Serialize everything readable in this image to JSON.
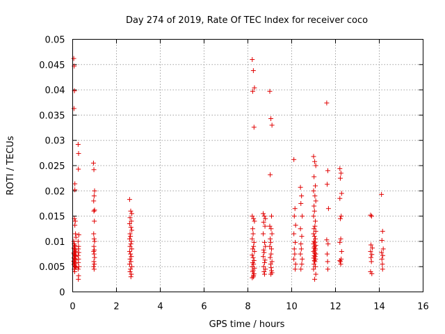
{
  "chart_data": {
    "type": "scatter",
    "title": "Day 274 of 2019, Rate Of TEC Index for receiver coco",
    "xlabel": "GPS time / hours",
    "ylabel": "ROTI / TECUs",
    "xlim": [
      0,
      16
    ],
    "ylim": [
      0,
      0.05
    ],
    "x_ticks": [
      0,
      2,
      4,
      6,
      8,
      10,
      12,
      14,
      16
    ],
    "y_ticks": [
      0,
      0.005,
      0.01,
      0.015,
      0.02,
      0.025,
      0.03,
      0.035,
      0.04,
      0.045,
      0.05
    ],
    "x_tick_labels": [
      "0",
      "2",
      "4",
      "6",
      "8",
      "10",
      "12",
      "14",
      "16"
    ],
    "y_tick_labels": [
      "0",
      "0.005",
      "0.01",
      "0.015",
      "0.02",
      "0.025",
      "0.03",
      "0.035",
      "0.04",
      "0.045",
      "0.05"
    ],
    "grid": true,
    "marker": "+",
    "color": "#e00000",
    "series": [
      {
        "name": "ROTI",
        "x": [
          0.05,
          0.07,
          0.08,
          0.06,
          0.1,
          0.1,
          0.08,
          0.12,
          0.1,
          0.13,
          0.15,
          0.05,
          0.07,
          0.09,
          0.11,
          0.06,
          0.08,
          0.1,
          0.12,
          0.14,
          0.05,
          0.07,
          0.09,
          0.11,
          0.13,
          0.06,
          0.08,
          0.1,
          0.12,
          0.05,
          0.07,
          0.09,
          0.11,
          0.06,
          0.08,
          0.1,
          0.12,
          0.15,
          0.07,
          0.09,
          0.25,
          0.27,
          0.26,
          0.28,
          0.25,
          0.27,
          0.26,
          0.28,
          0.25,
          0.27,
          0.26,
          0.28,
          0.25,
          0.27,
          0.26,
          0.95,
          0.97,
          1.0,
          0.98,
          0.96,
          1.0,
          0.97,
          0.99,
          0.96,
          0.98,
          1.0,
          0.97,
          0.99,
          0.96,
          0.98,
          1.0,
          0.97,
          0.99,
          0.96,
          0.98,
          2.6,
          2.65,
          2.7,
          2.62,
          2.68,
          2.6,
          2.66,
          2.7,
          2.62,
          2.64,
          2.6,
          2.68,
          2.66,
          2.62,
          2.7,
          2.6,
          2.64,
          2.68,
          2.62,
          2.66,
          2.6,
          2.7,
          2.64,
          2.62,
          2.68,
          2.66,
          8.2,
          8.25,
          8.3,
          8.22,
          8.28,
          8.2,
          8.26,
          8.3,
          8.22,
          8.24,
          8.2,
          8.28,
          8.26,
          8.22,
          8.3,
          8.2,
          8.24,
          8.28,
          8.22,
          8.26,
          8.2,
          8.3,
          8.24,
          8.22,
          8.28,
          8.26,
          8.25,
          8.2,
          8.7,
          8.75,
          8.8,
          8.72,
          8.78,
          8.7,
          8.76,
          8.8,
          8.72,
          8.74,
          8.7,
          8.78,
          8.76,
          8.72,
          8.8,
          8.74,
          8.76,
          9.0,
          9.05,
          9.1,
          9.02,
          9.08,
          9.0,
          9.06,
          9.1,
          9.02,
          9.04,
          9.0,
          9.08,
          9.06,
          9.02,
          9.1,
          9.04,
          9.06,
          9.08,
          9.1,
          9.05,
          10.1,
          10.15,
          10.12,
          10.18,
          10.1,
          10.16,
          10.12,
          10.14,
          10.1,
          10.18,
          10.16,
          10.4,
          10.45,
          10.42,
          10.48,
          10.4,
          10.46,
          10.42,
          10.44,
          10.4,
          10.48,
          10.46,
          10.42,
          11.0,
          11.05,
          11.1,
          11.02,
          11.08,
          11.0,
          11.06,
          11.1,
          11.02,
          11.04,
          11.0,
          11.08,
          11.06,
          11.02,
          11.1,
          11.0,
          11.04,
          11.08,
          11.02,
          11.06,
          11.0,
          11.1,
          11.04,
          11.02,
          11.08,
          11.06,
          11.0,
          11.05,
          11.1,
          11.03,
          11.07,
          11.01,
          11.09,
          11.04,
          11.06,
          11.02,
          11.08,
          11.0,
          11.1,
          11.05,
          11.6,
          11.65,
          11.62,
          11.68,
          11.6,
          11.66,
          11.62,
          11.64,
          11.65,
          12.2,
          12.25,
          12.22,
          12.28,
          12.2,
          12.26,
          12.22,
          12.24,
          12.2,
          12.28,
          12.26,
          12.22,
          12.24,
          12.2,
          13.6,
          13.65,
          13.62,
          13.68,
          13.6,
          13.66,
          13.62,
          13.64,
          13.6,
          13.66,
          14.1,
          14.15,
          14.12,
          14.18,
          14.1,
          14.16,
          14.12,
          14.14,
          14.15
        ],
        "y": [
          0.0462,
          0.0447,
          0.0398,
          0.0363,
          0.0214,
          0.0202,
          0.0145,
          0.014,
          0.0132,
          0.0115,
          0.0108,
          0.01,
          0.0095,
          0.0092,
          0.009,
          0.0087,
          0.0085,
          0.0083,
          0.008,
          0.0078,
          0.0077,
          0.0075,
          0.0073,
          0.0072,
          0.007,
          0.0068,
          0.0066,
          0.0065,
          0.0063,
          0.0061,
          0.006,
          0.0058,
          0.0056,
          0.0055,
          0.0053,
          0.0051,
          0.005,
          0.0048,
          0.0045,
          0.004,
          0.0292,
          0.0274,
          0.0243,
          0.0113,
          0.01,
          0.009,
          0.0085,
          0.0078,
          0.0072,
          0.0065,
          0.0058,
          0.005,
          0.0045,
          0.0032,
          0.0025,
          0.0255,
          0.0242,
          0.02,
          0.019,
          0.018,
          0.0162,
          0.016,
          0.014,
          0.0115,
          0.0105,
          0.01,
          0.009,
          0.0083,
          0.008,
          0.0075,
          0.0068,
          0.006,
          0.0055,
          0.005,
          0.0045,
          0.0183,
          0.016,
          0.0155,
          0.0147,
          0.014,
          0.0135,
          0.0128,
          0.0122,
          0.0115,
          0.011,
          0.0105,
          0.01,
          0.0095,
          0.009,
          0.0085,
          0.008,
          0.0075,
          0.007,
          0.0065,
          0.006,
          0.0055,
          0.005,
          0.0045,
          0.004,
          0.0035,
          0.003,
          0.046,
          0.0438,
          0.0404,
          0.0397,
          0.0326,
          0.015,
          0.0145,
          0.014,
          0.0125,
          0.0115,
          0.0105,
          0.0098,
          0.009,
          0.0085,
          0.008,
          0.0073,
          0.0068,
          0.0062,
          0.0058,
          0.0055,
          0.005,
          0.0047,
          0.0043,
          0.004,
          0.0036,
          0.0033,
          0.003,
          0.0028,
          0.0155,
          0.015,
          0.0145,
          0.0138,
          0.013,
          0.0115,
          0.0098,
          0.009,
          0.0083,
          0.0078,
          0.007,
          0.0063,
          0.0058,
          0.005,
          0.0045,
          0.004,
          0.0035,
          0.0397,
          0.0343,
          0.033,
          0.0232,
          0.015,
          0.013,
          0.0125,
          0.0115,
          0.0105,
          0.0098,
          0.009,
          0.0085,
          0.0075,
          0.0068,
          0.006,
          0.0055,
          0.0048,
          0.0042,
          0.0038,
          0.0035,
          0.0262,
          0.0165,
          0.015,
          0.0132,
          0.0115,
          0.0098,
          0.0085,
          0.0075,
          0.0065,
          0.0055,
          0.0045,
          0.0207,
          0.019,
          0.0175,
          0.015,
          0.0125,
          0.011,
          0.0095,
          0.0085,
          0.0075,
          0.0065,
          0.0055,
          0.0045,
          0.0268,
          0.0258,
          0.025,
          0.0228,
          0.021,
          0.02,
          0.019,
          0.018,
          0.017,
          0.016,
          0.015,
          0.014,
          0.013,
          0.0125,
          0.012,
          0.0115,
          0.011,
          0.0105,
          0.01,
          0.0098,
          0.0095,
          0.0092,
          0.009,
          0.0087,
          0.0085,
          0.0082,
          0.008,
          0.0077,
          0.0075,
          0.0072,
          0.007,
          0.0067,
          0.0065,
          0.0062,
          0.006,
          0.0055,
          0.005,
          0.0045,
          0.0035,
          0.0025,
          0.0374,
          0.024,
          0.0213,
          0.0165,
          0.0103,
          0.0095,
          0.0075,
          0.006,
          0.0045,
          0.0244,
          0.0235,
          0.0225,
          0.0195,
          0.0185,
          0.015,
          0.0145,
          0.0105,
          0.0098,
          0.008,
          0.0065,
          0.006,
          0.0055,
          0.0062,
          0.0152,
          0.015,
          0.0093,
          0.0087,
          0.008,
          0.0074,
          0.0068,
          0.006,
          0.004,
          0.0036,
          0.0193,
          0.012,
          0.0102,
          0.0085,
          0.0078,
          0.0072,
          0.0065,
          0.0055,
          0.0045
        ]
      }
    ]
  }
}
